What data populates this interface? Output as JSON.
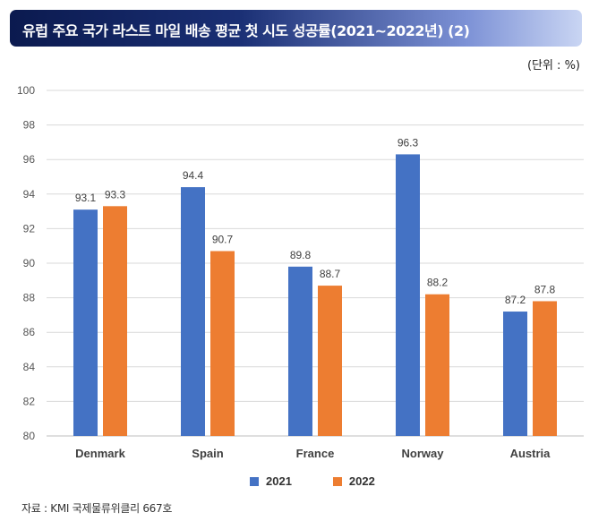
{
  "title": "유럽 주요 국가 라스트 마일 배송 평균 첫 시도 성공률(2021~2022년) (2)",
  "unit": "(단위 : %)",
  "source": "자료 : KMI 국제물류위클리 667호",
  "colors": {
    "series_2021": "#4472c4",
    "series_2022": "#ed7d31",
    "grid": "#d9d9d9"
  },
  "chart_data": {
    "type": "bar",
    "categories": [
      "Denmark",
      "Spain",
      "France",
      "Norway",
      "Austria"
    ],
    "series": [
      {
        "name": "2021",
        "values": [
          93.1,
          94.4,
          89.8,
          96.3,
          87.2
        ]
      },
      {
        "name": "2022",
        "values": [
          93.3,
          90.7,
          88.7,
          88.2,
          87.8
        ]
      }
    ],
    "ylim": [
      80,
      100
    ],
    "yticks": [
      80,
      82,
      84,
      86,
      88,
      90,
      92,
      94,
      96,
      98,
      100
    ],
    "grid": true,
    "legend_position": "bottom"
  }
}
